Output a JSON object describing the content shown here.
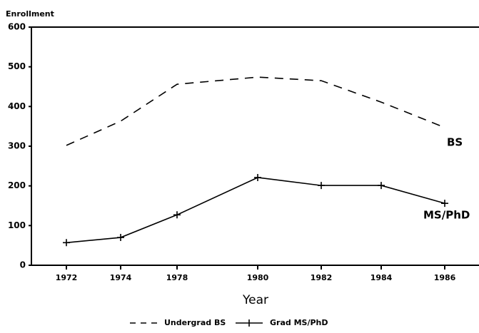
{
  "chart_data": {
    "type": "line",
    "ylabel": "Enrollment",
    "xlabel": "Year",
    "categories": [
      "1972",
      "1974",
      "1978",
      "1980",
      "1982",
      "1984",
      "1986"
    ],
    "series": [
      {
        "name": "Undergrad BS",
        "color": "#000000",
        "line_style": "dashed",
        "values": [
          302,
          363,
          456,
          474,
          465,
          411,
          347
        ]
      },
      {
        "name": "Grad MS/PhD",
        "color": "#000000",
        "line_style": "solid",
        "marker": "plus",
        "values": [
          57,
          70,
          127,
          221,
          201,
          201,
          156
        ]
      }
    ],
    "annotations": [
      "BS",
      "MS/PhD"
    ],
    "ylim": [
      0,
      600
    ],
    "yticks": [
      0,
      100,
      200,
      300,
      400,
      500,
      600
    ],
    "grid": false
  }
}
